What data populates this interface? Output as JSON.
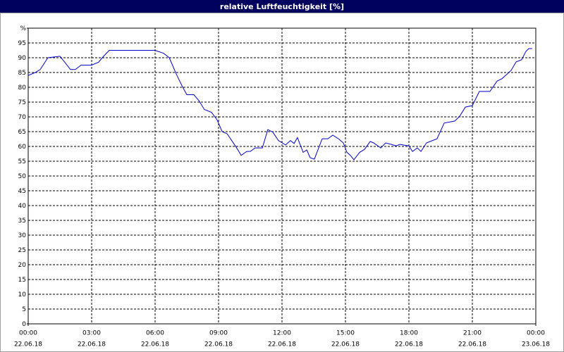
{
  "chart_data": {
    "type": "line",
    "title": "relative Luftfeuchtigkeit [%]",
    "xlim": [
      0,
      24
    ],
    "xticks": [
      {
        "value": 0,
        "label": "00:00"
      },
      {
        "value": 3,
        "label": "03:00"
      },
      {
        "value": 6,
        "label": "06:00"
      },
      {
        "value": 9,
        "label": "09:00"
      },
      {
        "value": 12,
        "label": "12:00"
      },
      {
        "value": 15,
        "label": "15:00"
      },
      {
        "value": 18,
        "label": "18:00"
      },
      {
        "value": 21,
        "label": "21:00"
      },
      {
        "value": 24,
        "label": "00:00"
      }
    ],
    "xtick_dates": [
      "22.06.18",
      "22.06.18",
      "22.06.18",
      "22.06.18",
      "22.06.18",
      "22.06.18",
      "22.06.18",
      "22.06.18",
      "23.06.18"
    ],
    "ylim": [
      0,
      100
    ],
    "yticks": [
      0,
      5,
      10,
      15,
      20,
      25,
      30,
      35,
      40,
      45,
      50,
      55,
      60,
      65,
      70,
      75,
      80,
      85,
      90,
      95,
      {
        "value": 100,
        "label": "%"
      }
    ],
    "grid": true,
    "series": [
      {
        "color": "#0000cc",
        "x": [
          0,
          0.33,
          0.57,
          0.93,
          1.5,
          1.67,
          2.0,
          2.23,
          2.5,
          3.0,
          3.33,
          3.5,
          3.83,
          6.0,
          6.4,
          6.67,
          7.0,
          7.27,
          7.5,
          7.83,
          8.07,
          8.33,
          8.67,
          8.93,
          9.17,
          9.4,
          9.67,
          9.9,
          10.07,
          10.33,
          10.5,
          10.73,
          11.07,
          11.33,
          11.57,
          11.83,
          12.17,
          12.4,
          12.57,
          12.73,
          13.0,
          13.17,
          13.33,
          13.53,
          13.9,
          14.17,
          14.4,
          14.67,
          14.9,
          15.07,
          15.23,
          15.4,
          15.67,
          15.9,
          16.17,
          16.33,
          16.67,
          16.9,
          17.17,
          17.4,
          17.57,
          18.0,
          18.17,
          18.4,
          18.57,
          18.83,
          19.33,
          19.67,
          20.17,
          20.4,
          20.67,
          21.0,
          21.33,
          21.83,
          22.17,
          22.4,
          22.83,
          23.07,
          23.33,
          23.53,
          23.67,
          23.83
        ],
        "values": [
          84,
          85,
          86,
          90,
          90.5,
          89,
          86,
          86,
          87.5,
          87.5,
          88.5,
          90,
          92.5,
          92.5,
          91.5,
          90,
          84.5,
          80.5,
          77.5,
          77.5,
          75.5,
          72.5,
          71.5,
          69,
          65,
          64.3,
          61.5,
          59,
          57,
          58.3,
          58.3,
          59.5,
          59.5,
          65.7,
          64.8,
          62,
          60.5,
          62,
          61,
          63,
          58,
          58.8,
          56.2,
          55.7,
          62.6,
          62.6,
          63.8,
          62.6,
          61.2,
          58,
          57,
          55.5,
          58,
          59,
          61.7,
          61.2,
          59.5,
          61.2,
          60.7,
          60.2,
          60.7,
          60.2,
          58.3,
          59.5,
          58.3,
          61.2,
          62.6,
          67.9,
          68.6,
          70.2,
          73.3,
          73.8,
          78.6,
          78.6,
          82.1,
          82.9,
          85.7,
          88.6,
          89.3,
          92.1,
          93.1,
          93.1
        ]
      }
    ]
  }
}
